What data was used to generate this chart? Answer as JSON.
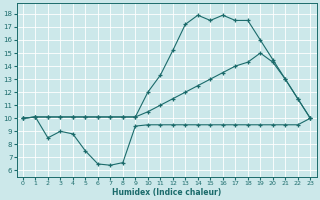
{
  "xlabel": "Humidex (Indice chaleur)",
  "xlim": [
    0,
    23
  ],
  "ylim": [
    6,
    18
  ],
  "xticks": [
    0,
    1,
    2,
    3,
    4,
    5,
    6,
    7,
    8,
    9,
    10,
    11,
    12,
    13,
    14,
    15,
    16,
    17,
    18,
    19,
    20,
    21,
    22,
    23
  ],
  "yticks": [
    6,
    7,
    8,
    9,
    10,
    11,
    12,
    13,
    14,
    15,
    16,
    17,
    18
  ],
  "bg_color": "#cce8ea",
  "line_color": "#1b6b6b",
  "line1_x": [
    0,
    1,
    2,
    3,
    4,
    5,
    6,
    7,
    8,
    9,
    10,
    11,
    12,
    13,
    14,
    15,
    16,
    17,
    18,
    19,
    20,
    21,
    22,
    23
  ],
  "line1_y": [
    10.0,
    10.1,
    8.5,
    9.0,
    8.8,
    7.5,
    6.5,
    6.4,
    6.6,
    9.4,
    9.5,
    9.5,
    9.5,
    9.5,
    9.5,
    9.5,
    9.5,
    9.5,
    9.5,
    9.5,
    9.5,
    9.5,
    9.5,
    10.0
  ],
  "line2_x": [
    0,
    1,
    2,
    3,
    4,
    5,
    6,
    7,
    8,
    9,
    10,
    11,
    12,
    13,
    14,
    15,
    16,
    17,
    18,
    19,
    20,
    21,
    22,
    23
  ],
  "line2_y": [
    10.0,
    10.1,
    10.1,
    10.1,
    10.1,
    10.1,
    10.1,
    10.1,
    10.1,
    10.1,
    10.5,
    11.0,
    11.5,
    12.0,
    12.5,
    13.0,
    13.5,
    14.0,
    14.3,
    15.0,
    14.3,
    13.0,
    11.5,
    10.0
  ],
  "line3_x": [
    0,
    1,
    2,
    3,
    4,
    5,
    6,
    7,
    8,
    9,
    10,
    11,
    12,
    13,
    14,
    15,
    16,
    17,
    18,
    19,
    20,
    21,
    22,
    23
  ],
  "line3_y": [
    10.0,
    10.1,
    10.1,
    10.1,
    10.1,
    10.1,
    10.1,
    10.1,
    10.1,
    10.1,
    12.0,
    13.3,
    15.2,
    17.2,
    17.9,
    17.5,
    17.9,
    17.5,
    17.5,
    16.0,
    14.5,
    13.0,
    11.5,
    10.0
  ]
}
